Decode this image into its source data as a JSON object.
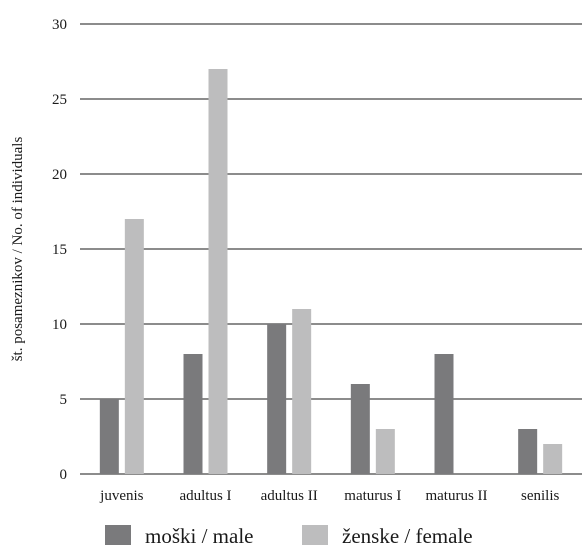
{
  "chart_data": {
    "type": "bar",
    "categories": [
      "juvenis",
      "adultus I",
      "adultus II",
      "maturus I",
      "maturus II",
      "senilis"
    ],
    "series": [
      {
        "name": "moški / male",
        "values": [
          5,
          8,
          10,
          6,
          8,
          3
        ],
        "color": "#7a7a7c"
      },
      {
        "name": "ženske / female",
        "values": [
          17,
          27,
          11,
          3,
          0,
          2
        ],
        "color": "#bdbdbe"
      }
    ],
    "xlabel": "",
    "ylabel": "št. posameznikov / No. of individuals",
    "ylim": [
      0,
      30
    ],
    "yticks": [
      "0",
      "5",
      "10",
      "15",
      "20",
      "25",
      "30"
    ],
    "grid": true,
    "legend": "bottom"
  }
}
